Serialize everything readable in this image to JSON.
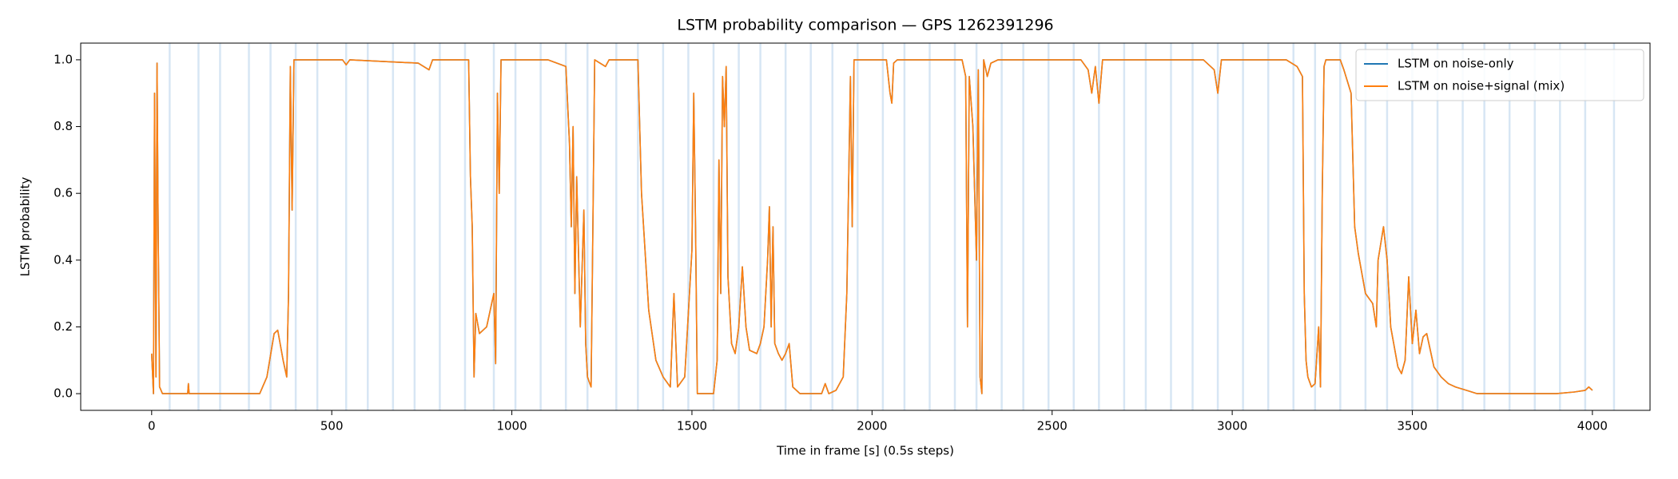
{
  "chart_data": {
    "type": "line",
    "title": "LSTM probability comparison — GPS 1262391296",
    "xlabel": "Time in frame [s] (0.5s steps)",
    "ylabel": "LSTM probability",
    "x": [
      0,
      5,
      8,
      12,
      15,
      18,
      22,
      30,
      100,
      102,
      104,
      300,
      320,
      340,
      350,
      365,
      375,
      380,
      385,
      390,
      395,
      530,
      540,
      550,
      740,
      770,
      780,
      880,
      885,
      890,
      895,
      900,
      910,
      930,
      950,
      955,
      960,
      965,
      970,
      1100,
      1150,
      1160,
      1165,
      1170,
      1175,
      1180,
      1190,
      1200,
      1205,
      1210,
      1220,
      1225,
      1230,
      1260,
      1270,
      1350,
      1360,
      1380,
      1400,
      1420,
      1440,
      1450,
      1460,
      1480,
      1500,
      1505,
      1510,
      1515,
      1530,
      1560,
      1570,
      1575,
      1580,
      1585,
      1590,
      1595,
      1600,
      1610,
      1620,
      1630,
      1640,
      1650,
      1660,
      1680,
      1690,
      1700,
      1710,
      1715,
      1720,
      1725,
      1730,
      1740,
      1750,
      1760,
      1770,
      1780,
      1800,
      1860,
      1870,
      1880,
      1900,
      1920,
      1930,
      1940,
      1945,
      1950,
      2040,
      2050,
      2055,
      2060,
      2070,
      2250,
      2260,
      2265,
      2270,
      2280,
      2290,
      2295,
      2300,
      2305,
      2310,
      2320,
      2330,
      2350,
      2580,
      2600,
      2610,
      2620,
      2630,
      2640,
      2920,
      2950,
      2960,
      2970,
      3150,
      3180,
      3195,
      3200,
      3205,
      3210,
      3220,
      3230,
      3240,
      3245,
      3250,
      3255,
      3260,
      3300,
      3310,
      3330,
      3340,
      3350,
      3370,
      3390,
      3400,
      3405,
      3420,
      3430,
      3440,
      3460,
      3470,
      3480,
      3490,
      3500,
      3510,
      3520,
      3530,
      3540,
      3550,
      3560,
      3580,
      3600,
      3620,
      3650,
      3680,
      3900,
      3950,
      3980,
      3990,
      4000
    ],
    "series": [
      {
        "name": "LSTM on noise-only",
        "color": "#1f77b4",
        "values": [
          0.12,
          0.0,
          0.9,
          0.05,
          0.99,
          0.5,
          0.02,
          0.0,
          0.0,
          0.03,
          0.0,
          0.0,
          0.05,
          0.18,
          0.19,
          0.1,
          0.05,
          0.3,
          0.98,
          0.55,
          1.0,
          1.0,
          0.985,
          1.0,
          0.99,
          0.97,
          1.0,
          1.0,
          0.65,
          0.5,
          0.05,
          0.24,
          0.18,
          0.2,
          0.3,
          0.09,
          0.9,
          0.6,
          1.0,
          1.0,
          0.98,
          0.75,
          0.5,
          0.8,
          0.3,
          0.65,
          0.2,
          0.55,
          0.15,
          0.05,
          0.02,
          0.5,
          1.0,
          0.98,
          1.0,
          1.0,
          0.6,
          0.25,
          0.1,
          0.05,
          0.02,
          0.3,
          0.02,
          0.05,
          0.43,
          0.9,
          0.5,
          0.0,
          0.0,
          0.0,
          0.1,
          0.7,
          0.3,
          0.95,
          0.8,
          0.98,
          0.35,
          0.15,
          0.12,
          0.2,
          0.38,
          0.2,
          0.13,
          0.12,
          0.15,
          0.2,
          0.4,
          0.56,
          0.2,
          0.5,
          0.15,
          0.12,
          0.1,
          0.12,
          0.15,
          0.02,
          0.0,
          0.0,
          0.03,
          0.0,
          0.01,
          0.05,
          0.3,
          0.95,
          0.5,
          1.0,
          1.0,
          0.9,
          0.87,
          0.99,
          1.0,
          1.0,
          0.95,
          0.2,
          0.95,
          0.8,
          0.4,
          0.97,
          0.05,
          0.0,
          1.0,
          0.95,
          0.99,
          1.0,
          1.0,
          0.97,
          0.9,
          0.98,
          0.87,
          1.0,
          1.0,
          0.97,
          0.9,
          1.0,
          1.0,
          0.98,
          0.95,
          0.3,
          0.1,
          0.05,
          0.02,
          0.03,
          0.2,
          0.02,
          0.6,
          0.98,
          1.0,
          1.0,
          0.97,
          0.9,
          0.5,
          0.42,
          0.3,
          0.27,
          0.2,
          0.4,
          0.5,
          0.4,
          0.2,
          0.08,
          0.06,
          0.1,
          0.35,
          0.15,
          0.25,
          0.12,
          0.17,
          0.18,
          0.13,
          0.08,
          0.05,
          0.03,
          0.02,
          0.01,
          0.0,
          0.0,
          0.005,
          0.01,
          0.02,
          0.01
        ]
      },
      {
        "name": "LSTM on noise+signal (mix)",
        "color": "#ff7f0e",
        "values": [
          0.12,
          0.0,
          0.9,
          0.05,
          0.99,
          0.5,
          0.02,
          0.0,
          0.0,
          0.03,
          0.0,
          0.0,
          0.05,
          0.18,
          0.19,
          0.1,
          0.05,
          0.3,
          0.98,
          0.55,
          1.0,
          1.0,
          0.985,
          1.0,
          0.99,
          0.97,
          1.0,
          1.0,
          0.65,
          0.5,
          0.05,
          0.24,
          0.18,
          0.2,
          0.3,
          0.09,
          0.9,
          0.6,
          1.0,
          1.0,
          0.98,
          0.75,
          0.5,
          0.8,
          0.3,
          0.65,
          0.2,
          0.55,
          0.15,
          0.05,
          0.02,
          0.5,
          1.0,
          0.98,
          1.0,
          1.0,
          0.6,
          0.25,
          0.1,
          0.05,
          0.02,
          0.3,
          0.02,
          0.05,
          0.43,
          0.9,
          0.5,
          0.0,
          0.0,
          0.0,
          0.1,
          0.7,
          0.3,
          0.95,
          0.8,
          0.98,
          0.35,
          0.15,
          0.12,
          0.2,
          0.38,
          0.2,
          0.13,
          0.12,
          0.15,
          0.2,
          0.4,
          0.56,
          0.2,
          0.5,
          0.15,
          0.12,
          0.1,
          0.12,
          0.15,
          0.02,
          0.0,
          0.0,
          0.03,
          0.0,
          0.01,
          0.05,
          0.3,
          0.95,
          0.5,
          1.0,
          1.0,
          0.9,
          0.87,
          0.99,
          1.0,
          1.0,
          0.95,
          0.2,
          0.95,
          0.8,
          0.4,
          0.97,
          0.05,
          0.0,
          1.0,
          0.95,
          0.99,
          1.0,
          1.0,
          0.97,
          0.9,
          0.98,
          0.87,
          1.0,
          1.0,
          0.97,
          0.9,
          1.0,
          1.0,
          0.98,
          0.95,
          0.3,
          0.1,
          0.05,
          0.02,
          0.03,
          0.2,
          0.02,
          0.6,
          0.98,
          1.0,
          1.0,
          0.97,
          0.9,
          0.5,
          0.42,
          0.3,
          0.27,
          0.2,
          0.4,
          0.5,
          0.4,
          0.2,
          0.08,
          0.06,
          0.1,
          0.35,
          0.15,
          0.25,
          0.12,
          0.17,
          0.18,
          0.13,
          0.08,
          0.05,
          0.03,
          0.02,
          0.01,
          0.0,
          0.0,
          0.005,
          0.01,
          0.02,
          0.01
        ]
      }
    ],
    "vlines": [
      50,
      130,
      190,
      270,
      330,
      400,
      460,
      540,
      600,
      670,
      730,
      800,
      870,
      950,
      1010,
      1080,
      1150,
      1210,
      1290,
      1350,
      1420,
      1490,
      1560,
      1630,
      1690,
      1760,
      1830,
      1890,
      1960,
      2030,
      2090,
      2160,
      2230,
      2290,
      2360,
      2420,
      2490,
      2560,
      2630,
      2700,
      2760,
      2830,
      2890,
      2960,
      3030,
      3100,
      3170,
      3230,
      3300,
      3370,
      3430,
      3500,
      3570,
      3640,
      3700,
      3770,
      3840,
      3910,
      3980,
      4060
    ],
    "vline_color": "#c6dbef",
    "xlim": [
      -197,
      4160
    ],
    "ylim": [
      -0.05,
      1.05
    ],
    "xticks": [
      0,
      500,
      1000,
      1500,
      2000,
      2500,
      3000,
      3500,
      4000
    ],
    "yticks": [
      {
        "value": 0,
        "label": "0.0"
      },
      {
        "value": 0.2,
        "label": "0.2"
      },
      {
        "value": 0.4,
        "label": "0.4"
      },
      {
        "value": 0.6,
        "label": "0.6"
      },
      {
        "value": 0.8,
        "label": "0.8"
      },
      {
        "value": 1.0,
        "label": "1.0"
      }
    ],
    "legend": "upper right"
  }
}
